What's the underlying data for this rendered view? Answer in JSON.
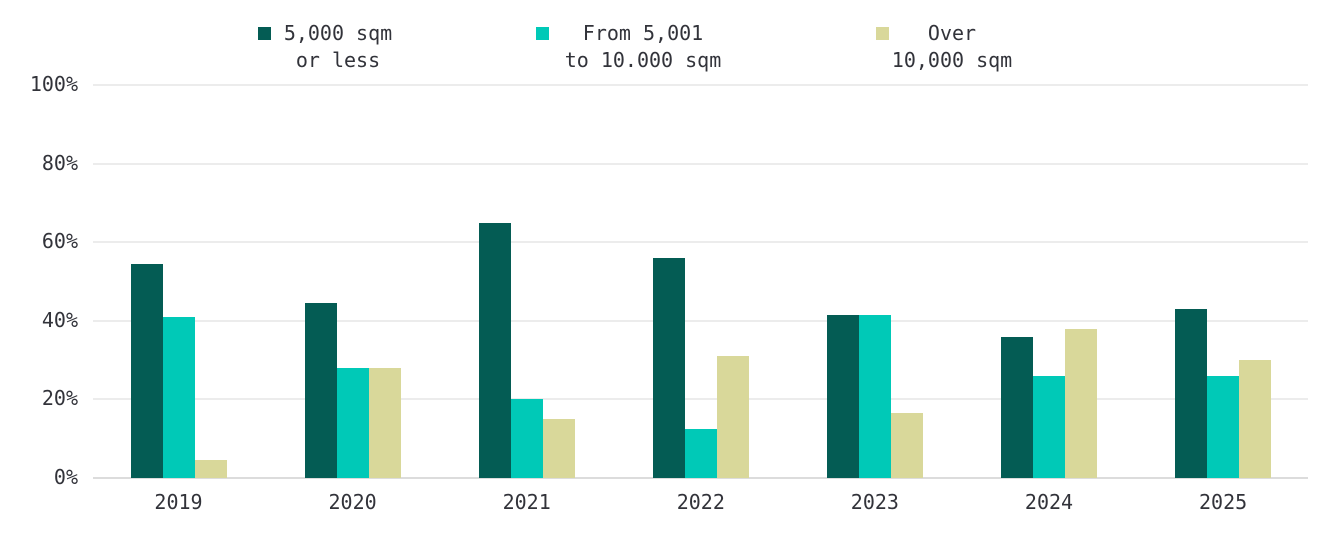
{
  "colors": {
    "series1": "#045C54",
    "series2": "#00C9B7",
    "series3": "#D9D89A",
    "text": "#32333A",
    "gridline": "#ECECEC",
    "axis_line": "#DCDCDC",
    "background": "#FFFFFF"
  },
  "legend": {
    "items": [
      {
        "label_line1": "5,000 sqm",
        "label_line2": "or less",
        "color": "#045C54"
      },
      {
        "label_line1": "From 5,001",
        "label_line2": "to 10.000 sqm",
        "color": "#00C9B7"
      },
      {
        "label_line1": "Over",
        "label_line2": "10,000 sqm",
        "color": "#D9D89A"
      }
    ]
  },
  "chart_data": {
    "type": "bar",
    "title": "",
    "xlabel": "",
    "ylabel": "",
    "categories": [
      "2019",
      "2020",
      "2021",
      "2022",
      "2023",
      "2024",
      "2025"
    ],
    "series": [
      {
        "name": "5,000 sqm or less",
        "color_key": "series1",
        "values": [
          54.5,
          44.5,
          65,
          56,
          41.5,
          36,
          43
        ]
      },
      {
        "name": "From 5,001 to 10.000 sqm",
        "color_key": "series2",
        "values": [
          41,
          28,
          20,
          12.5,
          41.5,
          26,
          26
        ]
      },
      {
        "name": "Over 10,000 sqm",
        "color_key": "series3",
        "values": [
          4.5,
          28,
          15,
          31,
          16.5,
          38,
          30
        ]
      }
    ],
    "ylim": [
      0,
      100
    ],
    "y_ticks": [
      {
        "value": 100,
        "label": "100%"
      },
      {
        "value": 80,
        "label": "80%"
      },
      {
        "value": 60,
        "label": "60%"
      },
      {
        "value": 40,
        "label": "40%"
      },
      {
        "value": 20,
        "label": "20%"
      },
      {
        "value": 0,
        "label": "0%"
      }
    ],
    "grid": true,
    "legend_position": "top"
  }
}
